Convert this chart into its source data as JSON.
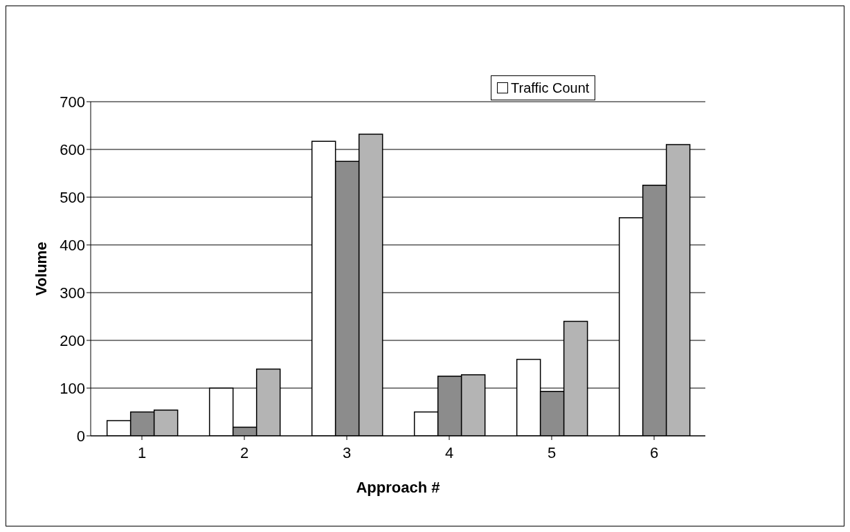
{
  "chart_data": {
    "type": "bar",
    "xlabel": "Approach #",
    "ylabel": "Volume",
    "categories": [
      "1",
      "2",
      "3",
      "4",
      "5",
      "6"
    ],
    "series": [
      {
        "name": "Traffic Count",
        "color": "#ffffff",
        "values": [
          32,
          100,
          617,
          50,
          160,
          457
        ]
      },
      {
        "color": "#8c8c8c",
        "values": [
          50,
          18,
          575,
          125,
          93,
          525
        ]
      },
      {
        "color": "#b4b4b4",
        "values": [
          54,
          140,
          632,
          128,
          240,
          610
        ]
      }
    ],
    "ylim": [
      0,
      700
    ],
    "yticks": [
      0,
      100,
      200,
      300,
      400,
      500,
      600,
      700
    ],
    "grid": "y",
    "legend": "top right"
  }
}
